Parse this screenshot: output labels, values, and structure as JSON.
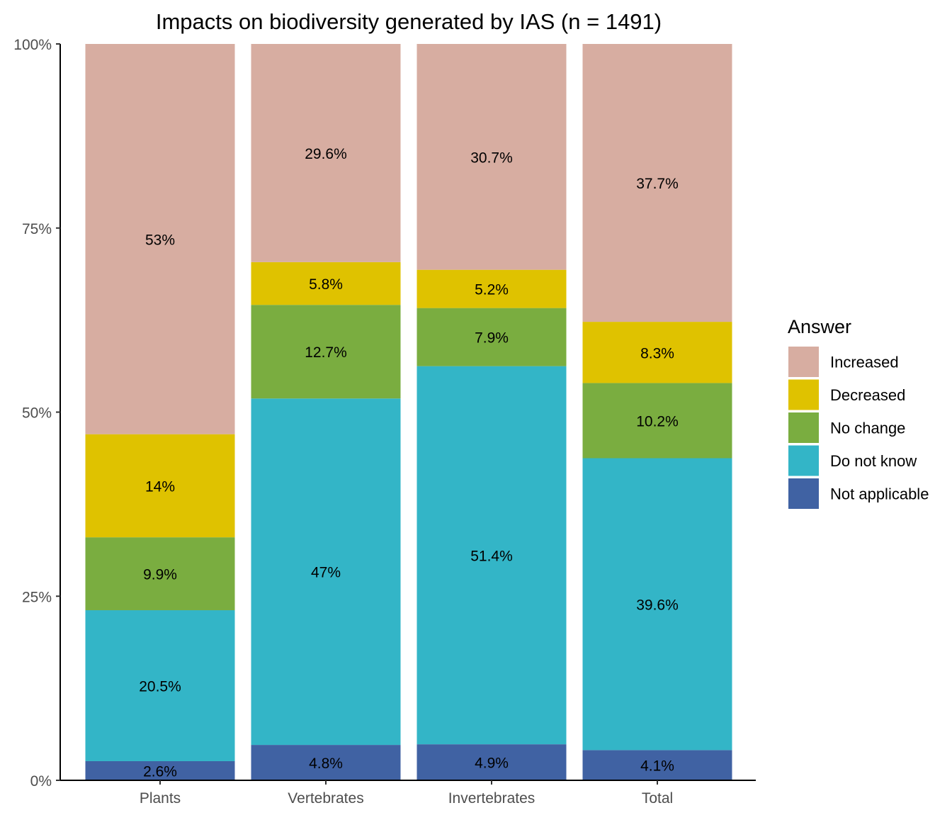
{
  "chart_data": {
    "type": "bar",
    "stacked": true,
    "title": "Impacts on biodiversity generated by IAS (n = 1491)",
    "xlabel": "",
    "ylabel": "",
    "ylim": [
      0,
      100
    ],
    "y_ticks": [
      "0%",
      "25%",
      "50%",
      "75%",
      "100%"
    ],
    "y_tick_values": [
      0,
      25,
      50,
      75,
      100
    ],
    "categories": [
      "Plants",
      "Vertebrates",
      "Invertebrates",
      "Total"
    ],
    "series": [
      {
        "name": "Not applicable",
        "color": "#4062a3",
        "values": [
          2.6,
          4.8,
          4.9,
          4.1
        ],
        "labels": [
          "2.6%",
          "4.8%",
          "4.9%",
          "4.1%"
        ]
      },
      {
        "name": "Do not know",
        "color": "#33b5c7",
        "values": [
          20.5,
          47.0,
          51.4,
          39.6
        ],
        "labels": [
          "20.5%",
          "47%",
          "51.4%",
          "39.6%"
        ]
      },
      {
        "name": "No change",
        "color": "#7aad40",
        "values": [
          9.9,
          12.7,
          7.9,
          10.2
        ],
        "labels": [
          "9.9%",
          "12.7%",
          "7.9%",
          "10.2%"
        ]
      },
      {
        "name": "Decreased",
        "color": "#dfc200",
        "values": [
          14.0,
          5.8,
          5.2,
          8.3
        ],
        "labels": [
          "14%",
          "5.8%",
          "5.2%",
          "8.3%"
        ]
      },
      {
        "name": "Increased",
        "color": "#d7ada1",
        "values": [
          53.0,
          29.6,
          30.7,
          37.7
        ],
        "labels": [
          "53%",
          "29.6%",
          "30.7%",
          "37.7%"
        ]
      }
    ],
    "legend": {
      "title": "Answer",
      "position": "right",
      "order": [
        "Increased",
        "Decreased",
        "No change",
        "Do not know",
        "Not applicable"
      ]
    },
    "grid": false
  }
}
